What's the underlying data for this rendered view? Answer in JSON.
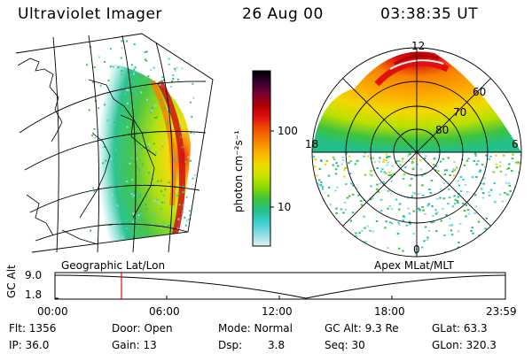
{
  "header": {
    "title": "Ultraviolet Imager",
    "date": "26 Aug 00",
    "time": "03:38:35 UT"
  },
  "left_panel": {
    "caption": "Geographic Lat/Lon"
  },
  "right_panel": {
    "caption": "Apex MLat/MLT",
    "mlt_labels": [
      "12",
      "18",
      "6",
      "0"
    ],
    "lat_labels": [
      "60",
      "70",
      "80"
    ]
  },
  "colorbar": {
    "unit_label": "photon cm⁻²s⁻¹",
    "tick_labels": [
      "100",
      "10"
    ],
    "colors": [
      "#000000",
      "#3a0030",
      "#7a0033",
      "#b00000",
      "#e21010",
      "#f25000",
      "#f78000",
      "#fcb000",
      "#f2d800",
      "#c8e400",
      "#86d800",
      "#3fc23f",
      "#22c08a",
      "#3dcfd0",
      "#8fdde6",
      "#dff3f5"
    ]
  },
  "timeline": {
    "axis_label": "GC Alt",
    "y_ticks": [
      "9.0",
      "1.8"
    ],
    "x_ticks": [
      "00:00",
      "06:00",
      "12:00",
      "18:00",
      "23:59"
    ],
    "marker_color": "#ff0000"
  },
  "info": {
    "flt": "Flt: 1356",
    "ip": "IP: 36.0",
    "door": "Door: Open",
    "gain": "Gain: 13",
    "mode": "Mode: Normal",
    "dsp_label": "Dsp:",
    "dsp_value": "3.8",
    "gc_alt": "GC Alt: 9.3 Re",
    "seq": "Seq: 30",
    "glat": "GLat: 63.3",
    "glon": "GLon: 320.3"
  }
}
